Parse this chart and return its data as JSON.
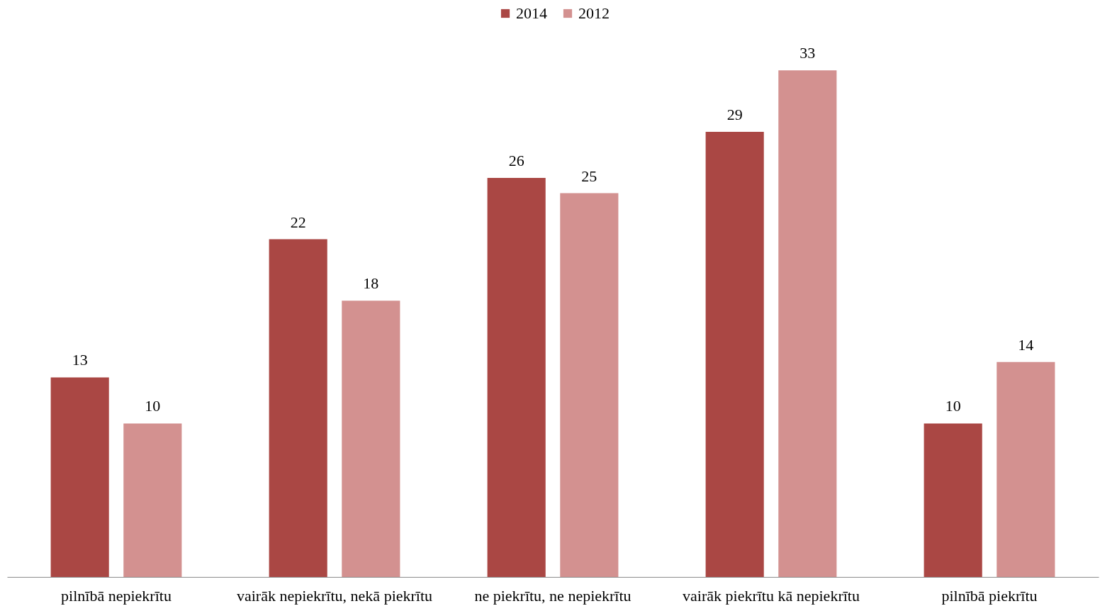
{
  "chart_data": {
    "type": "bar",
    "categories": [
      "pilnībā nepiekrītu",
      "vairāk nepiekrītu, nekā piekrītu",
      "ne piekrītu, ne nepiekrītu",
      "vairāk piekrītu kā nepiekrītu",
      "pilnībā piekrītu"
    ],
    "series": [
      {
        "name": "2014",
        "color": "#aa4744",
        "values": [
          13,
          22,
          26,
          29,
          10
        ]
      },
      {
        "name": "2012",
        "color": "#d39190",
        "values": [
          10,
          18,
          25,
          33,
          14
        ]
      }
    ],
    "data_labels": true,
    "legend": "top",
    "tick_labels": "x"
  }
}
